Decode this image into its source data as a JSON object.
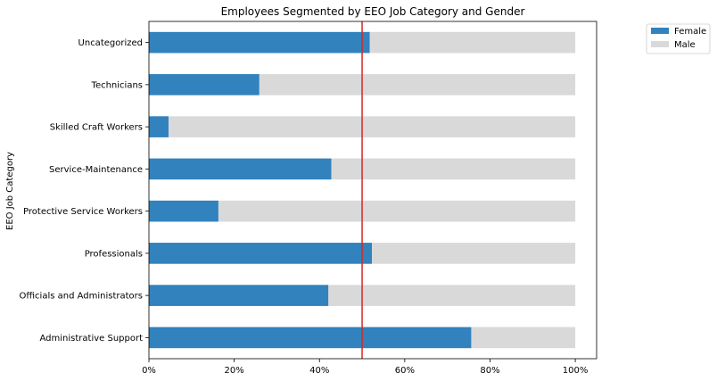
{
  "chart_data": {
    "type": "bar",
    "orientation": "horizontal",
    "stacked": true,
    "title": "Employees Segmented by EEO Job Category and Gender",
    "ylabel": "EEO Job Category",
    "xlabel": "",
    "categories": [
      "Administrative Support",
      "Officials and Administrators",
      "Professionals",
      "Protective Service Workers",
      "Service-Maintenance",
      "Skilled Craft Workers",
      "Technicians",
      "Uncategorized"
    ],
    "series": [
      {
        "name": "Female",
        "color": "#3182bd",
        "values": [
          0.756,
          0.421,
          0.523,
          0.163,
          0.428,
          0.046,
          0.259,
          0.518
        ]
      },
      {
        "name": "Male",
        "color": "#d9d9d9",
        "values": [
          0.244,
          0.579,
          0.477,
          0.837,
          0.572,
          0.954,
          0.741,
          0.482
        ]
      }
    ],
    "xlim": [
      0,
      1.05
    ],
    "xticks": [
      0,
      0.2,
      0.4,
      0.6,
      0.8,
      1.0
    ],
    "xtick_labels": [
      "0%",
      "20%",
      "40%",
      "60%",
      "80%",
      "100%"
    ],
    "reference_line": {
      "x": 0.5,
      "color": "#d62728"
    },
    "legend": {
      "position": "outside-top-right"
    },
    "grid": false
  }
}
